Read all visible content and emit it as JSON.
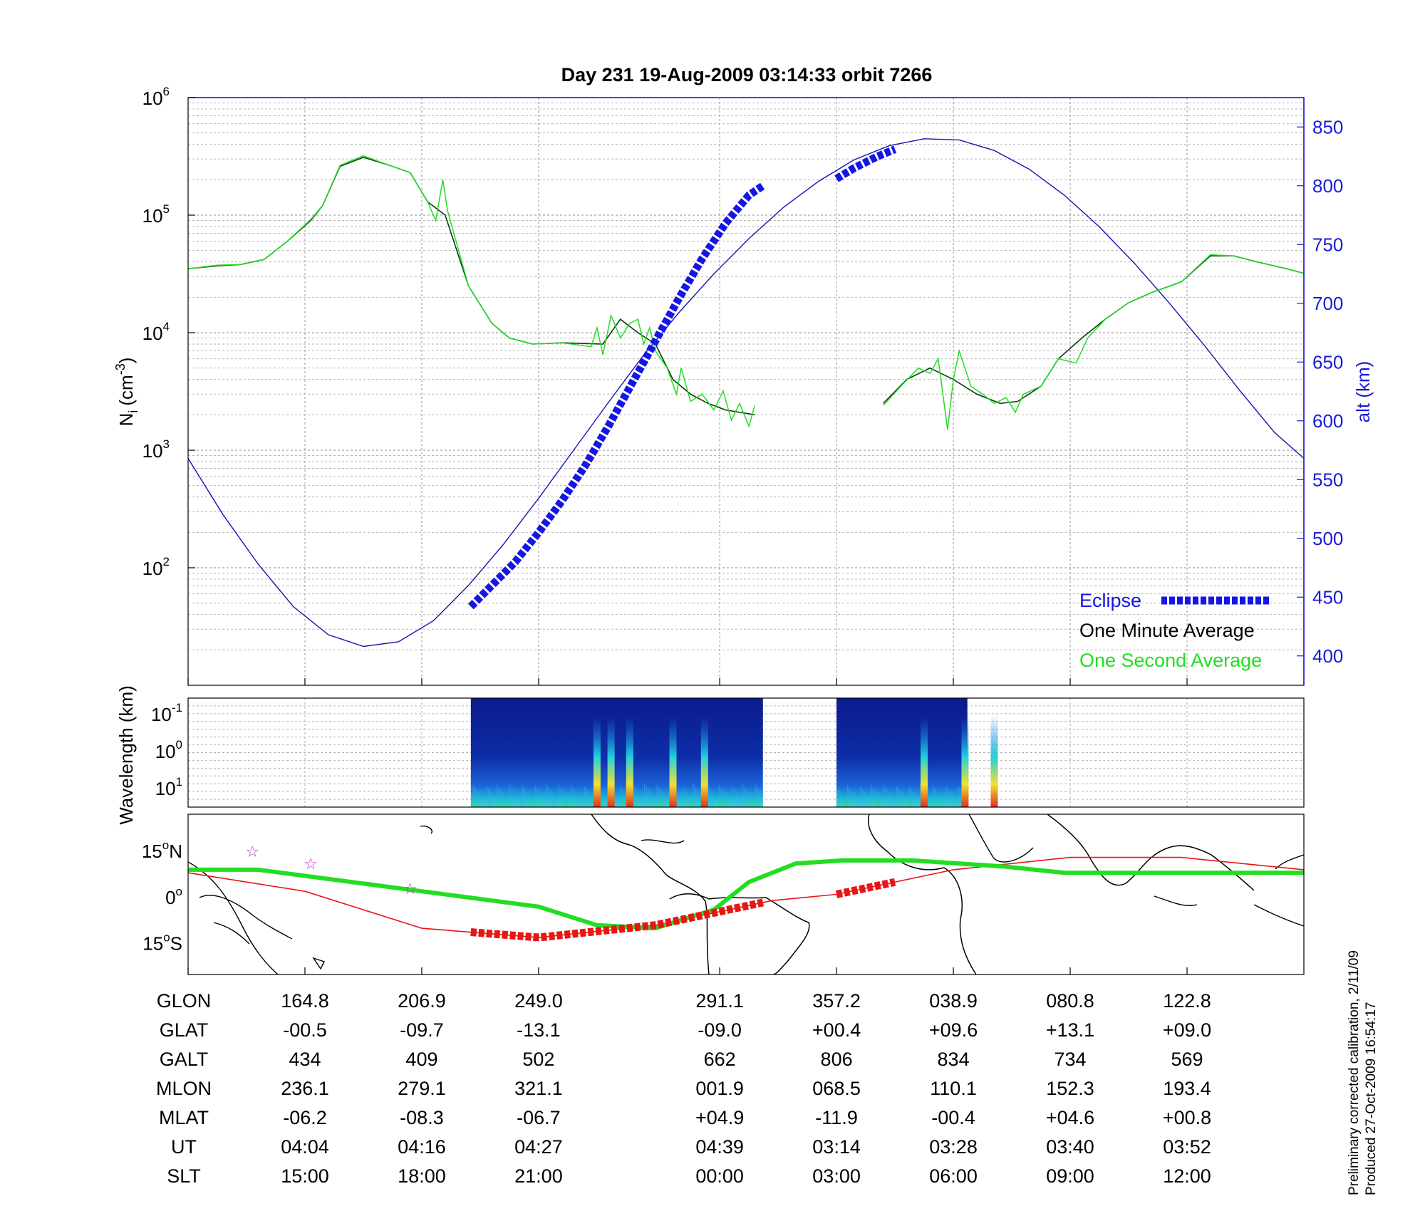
{
  "title": "Day 231  19-Aug-2009 03:14:33   orbit 7266",
  "colors": {
    "one_minute": "#0a3d0a",
    "one_second": "#22dd22",
    "eclipse": "#1515e6",
    "altitude": "#1515b0",
    "track_red": "#e81515",
    "track_green": "#22dd22",
    "star": "#cc33cc"
  },
  "chart_data": [
    {
      "type": "line",
      "panel": "ion-density",
      "ylabel": "N_i (cm^-3)",
      "ylabel_main": "N",
      "ylabel_sub": "i",
      "ylabel_unit": "(cm",
      "ylabel_exp": "-3",
      "ylabel_close": ")",
      "yscale": "log",
      "ylim": [
        10,
        1000000
      ],
      "ytick_values": [
        100,
        1000,
        10000,
        100000,
        1000000
      ],
      "ytick_bases": [
        "10",
        "10",
        "10",
        "10",
        "10"
      ],
      "ytick_exps": [
        "2",
        "3",
        "4",
        "5",
        "6"
      ],
      "y2label": "alt (km)",
      "y2lim": [
        375,
        875
      ],
      "y2ticks": [
        400,
        450,
        500,
        550,
        600,
        650,
        700,
        750,
        800,
        850
      ],
      "grid": true,
      "x_markers": [
        0,
        1,
        2,
        3,
        4.55,
        5.55,
        6.55,
        7.55,
        8.55
      ],
      "series": [
        {
          "name": "One Minute Average",
          "segments": [
            [
              [
                0,
                35000
              ],
              [
                0.25,
                37000
              ],
              [
                0.45,
                38000
              ],
              [
                0.65,
                42000
              ],
              [
                0.85,
                60000
              ],
              [
                1.05,
                90000
              ],
              [
                1.15,
                120000
              ],
              [
                1.3,
                260000
              ],
              [
                1.5,
                310000
              ],
              [
                1.7,
                270000
              ],
              [
                1.9,
                230000
              ],
              [
                2.05,
                130000
              ],
              [
                2.2,
                100000
              ],
              [
                2.4,
                25000
              ],
              [
                2.6,
                12000
              ],
              [
                2.75,
                9000
              ],
              [
                2.95,
                8000
              ],
              [
                3.2,
                8200
              ],
              [
                3.55,
                8000
              ],
              [
                3.7,
                13000
              ],
              [
                3.85,
                10000
              ],
              [
                4.0,
                8000
              ],
              [
                4.15,
                4000
              ],
              [
                4.3,
                3000
              ],
              [
                4.45,
                2500
              ],
              [
                4.6,
                2200
              ],
              [
                4.85,
                2000
              ]
            ],
            [
              [
                5.95,
                2500
              ],
              [
                6.15,
                4000
              ],
              [
                6.35,
                5000
              ],
              [
                6.55,
                4000
              ],
              [
                6.75,
                3000
              ],
              [
                6.95,
                2500
              ],
              [
                7.1,
                2600
              ],
              [
                7.3,
                3500
              ],
              [
                7.45,
                6000
              ],
              [
                7.65,
                9000
              ],
              [
                7.85,
                13000
              ],
              [
                8.05,
                18000
              ],
              [
                8.25,
                22000
              ],
              [
                8.5,
                27000
              ],
              [
                8.75,
                45000
              ],
              [
                8.95,
                45000
              ],
              [
                9.15,
                40000
              ],
              [
                9.4,
                35000
              ],
              [
                9.55,
                32000
              ]
            ]
          ]
        },
        {
          "name": "One Second Average",
          "segments": [
            [
              [
                0,
                35000
              ],
              [
                0.25,
                37500
              ],
              [
                0.45,
                38000
              ],
              [
                0.65,
                42000
              ],
              [
                0.85,
                60000
              ],
              [
                1.05,
                92000
              ],
              [
                1.15,
                120000
              ],
              [
                1.3,
                265000
              ],
              [
                1.5,
                320000
              ],
              [
                1.7,
                270000
              ],
              [
                1.9,
                230000
              ],
              [
                2.05,
                130000
              ],
              [
                2.12,
                90000
              ],
              [
                2.18,
                200000
              ],
              [
                2.22,
                110000
              ],
              [
                2.4,
                25000
              ],
              [
                2.6,
                12000
              ],
              [
                2.75,
                9000
              ],
              [
                2.95,
                8000
              ],
              [
                3.2,
                8200
              ],
              [
                3.45,
                7600
              ],
              [
                3.5,
                11000
              ],
              [
                3.55,
                6500
              ],
              [
                3.62,
                14000
              ],
              [
                3.7,
                9000
              ],
              [
                3.78,
                12000
              ],
              [
                3.85,
                13000
              ],
              [
                3.9,
                8000
              ],
              [
                3.95,
                11000
              ],
              [
                4.0,
                7000
              ],
              [
                4.1,
                5000
              ],
              [
                4.18,
                3000
              ],
              [
                4.22,
                5000
              ],
              [
                4.3,
                2600
              ],
              [
                4.4,
                3000
              ],
              [
                4.5,
                2200
              ],
              [
                4.58,
                3200
              ],
              [
                4.65,
                1800
              ],
              [
                4.72,
                2500
              ],
              [
                4.8,
                1600
              ],
              [
                4.85,
                2400
              ]
            ],
            [
              [
                5.95,
                2400
              ],
              [
                6.1,
                3500
              ],
              [
                6.25,
                5000
              ],
              [
                6.35,
                4500
              ],
              [
                6.42,
                6000
              ],
              [
                6.5,
                1500
              ],
              [
                6.55,
                4000
              ],
              [
                6.6,
                7000
              ],
              [
                6.7,
                3500
              ],
              [
                6.8,
                3000
              ],
              [
                6.9,
                2500
              ],
              [
                7.0,
                2800
              ],
              [
                7.08,
                2100
              ],
              [
                7.15,
                3000
              ],
              [
                7.3,
                3500
              ],
              [
                7.45,
                6000
              ],
              [
                7.6,
                5500
              ],
              [
                7.7,
                9000
              ],
              [
                7.85,
                13000
              ],
              [
                8.05,
                18000
              ],
              [
                8.25,
                22000
              ],
              [
                8.5,
                27000
              ],
              [
                8.75,
                46000
              ],
              [
                8.95,
                45000
              ],
              [
                9.15,
                40000
              ],
              [
                9.4,
                35000
              ],
              [
                9.55,
                32000
              ]
            ]
          ]
        },
        {
          "name": "Eclipse",
          "axis": "alt",
          "segments": [
            [
              [
                2.42,
                442
              ],
              [
                2.6,
                460
              ],
              [
                2.8,
                480
              ],
              [
                3.0,
                505
              ],
              [
                3.2,
                532
              ],
              [
                3.4,
                562
              ],
              [
                3.6,
                596
              ],
              [
                3.8,
                632
              ],
              [
                4.0,
                668
              ],
              [
                4.2,
                704
              ],
              [
                4.4,
                738
              ],
              [
                4.6,
                768
              ],
              [
                4.8,
                792
              ],
              [
                4.92,
                800
              ]
            ],
            [
              [
                5.55,
                806
              ],
              [
                5.7,
                815
              ],
              [
                5.9,
                825
              ],
              [
                6.05,
                831
              ]
            ]
          ]
        },
        {
          "name": "alt",
          "axis": "alt",
          "segments": [
            [
              [
                0,
                568
              ],
              [
                0.3,
                520
              ],
              [
                0.6,
                478
              ],
              [
                0.9,
                442
              ],
              [
                1.2,
                418
              ],
              [
                1.5,
                408
              ],
              [
                1.8,
                412
              ],
              [
                2.1,
                430
              ],
              [
                2.4,
                460
              ],
              [
                2.7,
                495
              ],
              [
                3.0,
                534
              ],
              [
                3.3,
                575
              ],
              [
                3.6,
                616
              ],
              [
                3.9,
                656
              ],
              [
                4.2,
                692
              ],
              [
                4.5,
                725
              ],
              [
                4.8,
                755
              ],
              [
                5.1,
                782
              ],
              [
                5.4,
                804
              ],
              [
                5.7,
                822
              ],
              [
                6.0,
                834
              ],
              [
                6.3,
                840
              ],
              [
                6.6,
                839
              ],
              [
                6.9,
                830
              ],
              [
                7.2,
                814
              ],
              [
                7.5,
                792
              ],
              [
                7.8,
                765
              ],
              [
                8.1,
                734
              ],
              [
                8.4,
                700
              ],
              [
                8.7,
                664
              ],
              [
                9.0,
                626
              ],
              [
                9.3,
                590
              ],
              [
                9.55,
                568
              ]
            ]
          ]
        }
      ],
      "legend": {
        "placement": "bottom-right",
        "eclipse": "Eclipse",
        "one_minute": "One Minute Average",
        "one_second": "One Second Average"
      }
    },
    {
      "type": "heatmap",
      "panel": "wavelength-spectrogram",
      "ylabel": "Wavelength (km)",
      "yscale": "log",
      "ytick_bases": [
        "10",
        "10",
        "10"
      ],
      "ytick_exps": [
        "-1",
        "0",
        "1"
      ],
      "x_extents": [
        [
          2.42,
          4.92
        ],
        [
          5.55,
          6.67
        ]
      ],
      "hot_columns": [
        3.5,
        3.62,
        3.78,
        4.15,
        4.42,
        6.3,
        6.65,
        6.9
      ]
    },
    {
      "type": "line",
      "panel": "ground-track-map",
      "lat_ticks": [
        {
          "value": 15,
          "label": "15",
          "hemi": "N"
        },
        {
          "value": 0,
          "label": "0",
          "hemi": ""
        },
        {
          "value": -15,
          "label": "15",
          "hemi": "S"
        }
      ],
      "ylim": [
        -25,
        27
      ],
      "series": [
        {
          "name": "satellite track",
          "points": [
            [
              0,
              8
            ],
            [
              1,
              2
            ],
            [
              2,
              -10
            ],
            [
              3,
              -13
            ],
            [
              4,
              -9
            ],
            [
              5,
              -1
            ],
            [
              5.55,
              1
            ],
            [
              6.55,
              9
            ],
            [
              7.55,
              13
            ],
            [
              8.5,
              13
            ],
            [
              9.55,
              9
            ]
          ]
        },
        {
          "name": "magnetic equator",
          "points": [
            [
              0,
              9
            ],
            [
              0.6,
              9
            ],
            [
              1,
              7
            ],
            [
              2,
              2
            ],
            [
              3,
              -3
            ],
            [
              3.5,
              -9
            ],
            [
              4,
              -10
            ],
            [
              4.5,
              -4
            ],
            [
              4.8,
              5
            ],
            [
              5.2,
              11
            ],
            [
              5.6,
              12
            ],
            [
              6.2,
              12
            ],
            [
              7,
              10
            ],
            [
              7.5,
              8
            ],
            [
              8,
              8
            ],
            [
              8.5,
              8
            ],
            [
              9.55,
              8
            ]
          ]
        }
      ],
      "eclipse_segments": [
        [
          2.42,
          4.92
        ],
        [
          5.55,
          6.05
        ]
      ],
      "stars": [
        [
          0.55,
          15
        ],
        [
          1.05,
          11
        ],
        [
          1.9,
          3
        ]
      ]
    }
  ],
  "table": {
    "row_labels": [
      "GLON",
      "GLAT",
      "GALT",
      "MLON",
      "MLAT",
      "UT",
      "SLT"
    ],
    "columns": [
      {
        "GLON": "164.8",
        "GLAT": "-00.5",
        "GALT": "434",
        "MLON": "236.1",
        "MLAT": "-06.2",
        "UT": "04:04",
        "SLT": "15:00"
      },
      {
        "GLON": "206.9",
        "GLAT": "-09.7",
        "GALT": "409",
        "MLON": "279.1",
        "MLAT": "-08.3",
        "UT": "04:16",
        "SLT": "18:00"
      },
      {
        "GLON": "249.0",
        "GLAT": "-13.1",
        "GALT": "502",
        "MLON": "321.1",
        "MLAT": "-06.7",
        "UT": "04:27",
        "SLT": "21:00"
      },
      {
        "GLON": "291.1",
        "GLAT": "-09.0",
        "GALT": "662",
        "MLON": "001.9",
        "MLAT": "+04.9",
        "UT": "04:39",
        "SLT": "00:00"
      },
      {
        "GLON": "357.2",
        "GLAT": "+00.4",
        "GALT": "806",
        "MLON": "068.5",
        "MLAT": "-11.9",
        "UT": "03:14",
        "SLT": "03:00"
      },
      {
        "GLON": "038.9",
        "GLAT": "+09.6",
        "GALT": "834",
        "MLON": "110.1",
        "MLAT": "-00.4",
        "UT": "03:28",
        "SLT": "06:00"
      },
      {
        "GLON": "080.8",
        "GLAT": "+13.1",
        "GALT": "734",
        "MLON": "152.3",
        "MLAT": "+04.6",
        "UT": "03:40",
        "SLT": "09:00"
      },
      {
        "GLON": "122.8",
        "GLAT": "+09.0",
        "GALT": "569",
        "MLON": "193.4",
        "MLAT": "+00.8",
        "UT": "03:52",
        "SLT": "12:00"
      }
    ]
  },
  "credits": {
    "line1": "Preliminary corrected calibration, 2/11/09",
    "line2": "Produced 27-Oct-2009 16:54:17"
  }
}
